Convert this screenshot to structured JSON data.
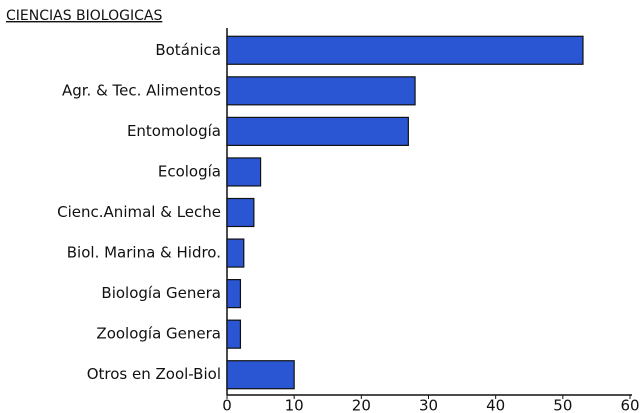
{
  "chart_data": {
    "type": "hbar",
    "title": "CIENCIAS BIOLOGICAS",
    "categories": [
      "Botánica",
      "Agr. & Tec. Alimentos",
      "Entomología",
      "Ecología",
      "Cienc.Animal & Leche",
      "Biol. Marina & Hidro.",
      "Biología Genera",
      "Zoología Genera",
      "Otros en Zool-Biol"
    ],
    "values": [
      53,
      28,
      27,
      5,
      4,
      2.5,
      2,
      2,
      10
    ],
    "color": "#2b56d3",
    "xlim": [
      0,
      60
    ],
    "xticks": [
      0,
      10,
      20,
      30,
      40,
      50,
      60
    ],
    "grid": false
  }
}
